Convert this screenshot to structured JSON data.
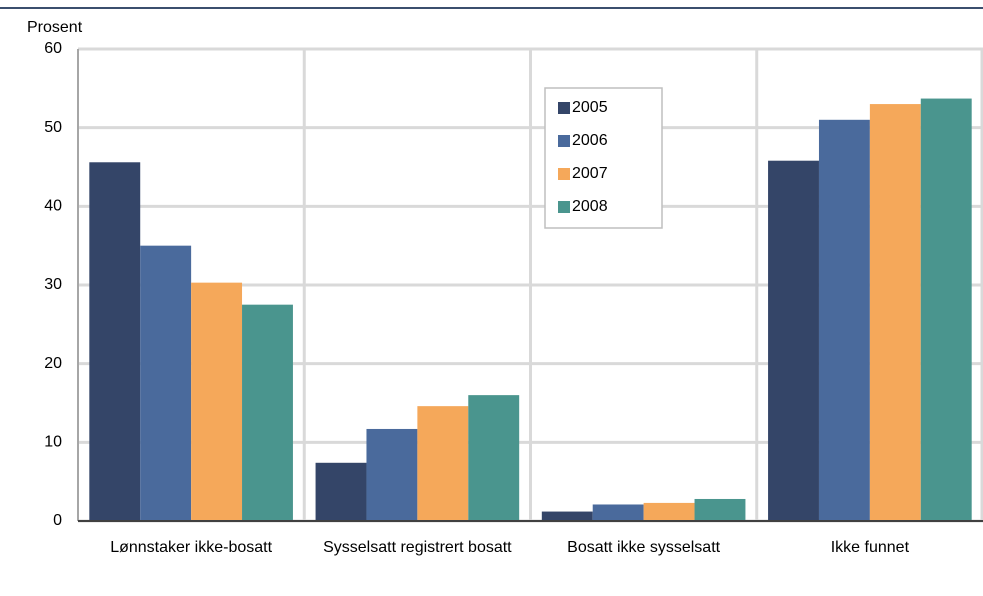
{
  "chart_data": {
    "type": "bar",
    "y_label": "Prosent",
    "categories": [
      "Lønnstaker ikke-bosatt",
      "Sysselsatt registrert bosatt",
      "Bosatt ikke sysselsatt",
      "Ikke funnet"
    ],
    "series": [
      {
        "name": "2005",
        "color": "#344568",
        "values": [
          45.6,
          7.4,
          1.2,
          45.8
        ]
      },
      {
        "name": "2006",
        "color": "#4a6a9c",
        "values": [
          35.0,
          11.7,
          2.1,
          51.0
        ]
      },
      {
        "name": "2007",
        "color": "#f5a85a",
        "values": [
          30.3,
          14.6,
          2.3,
          53.0
        ]
      },
      {
        "name": "2008",
        "color": "#4a958e",
        "values": [
          27.5,
          16.0,
          2.8,
          53.7
        ]
      }
    ],
    "ylim": [
      0,
      60
    ],
    "yticks": [
      0,
      10,
      20,
      30,
      40,
      50,
      60
    ],
    "grid": true,
    "legend": "upper center"
  }
}
